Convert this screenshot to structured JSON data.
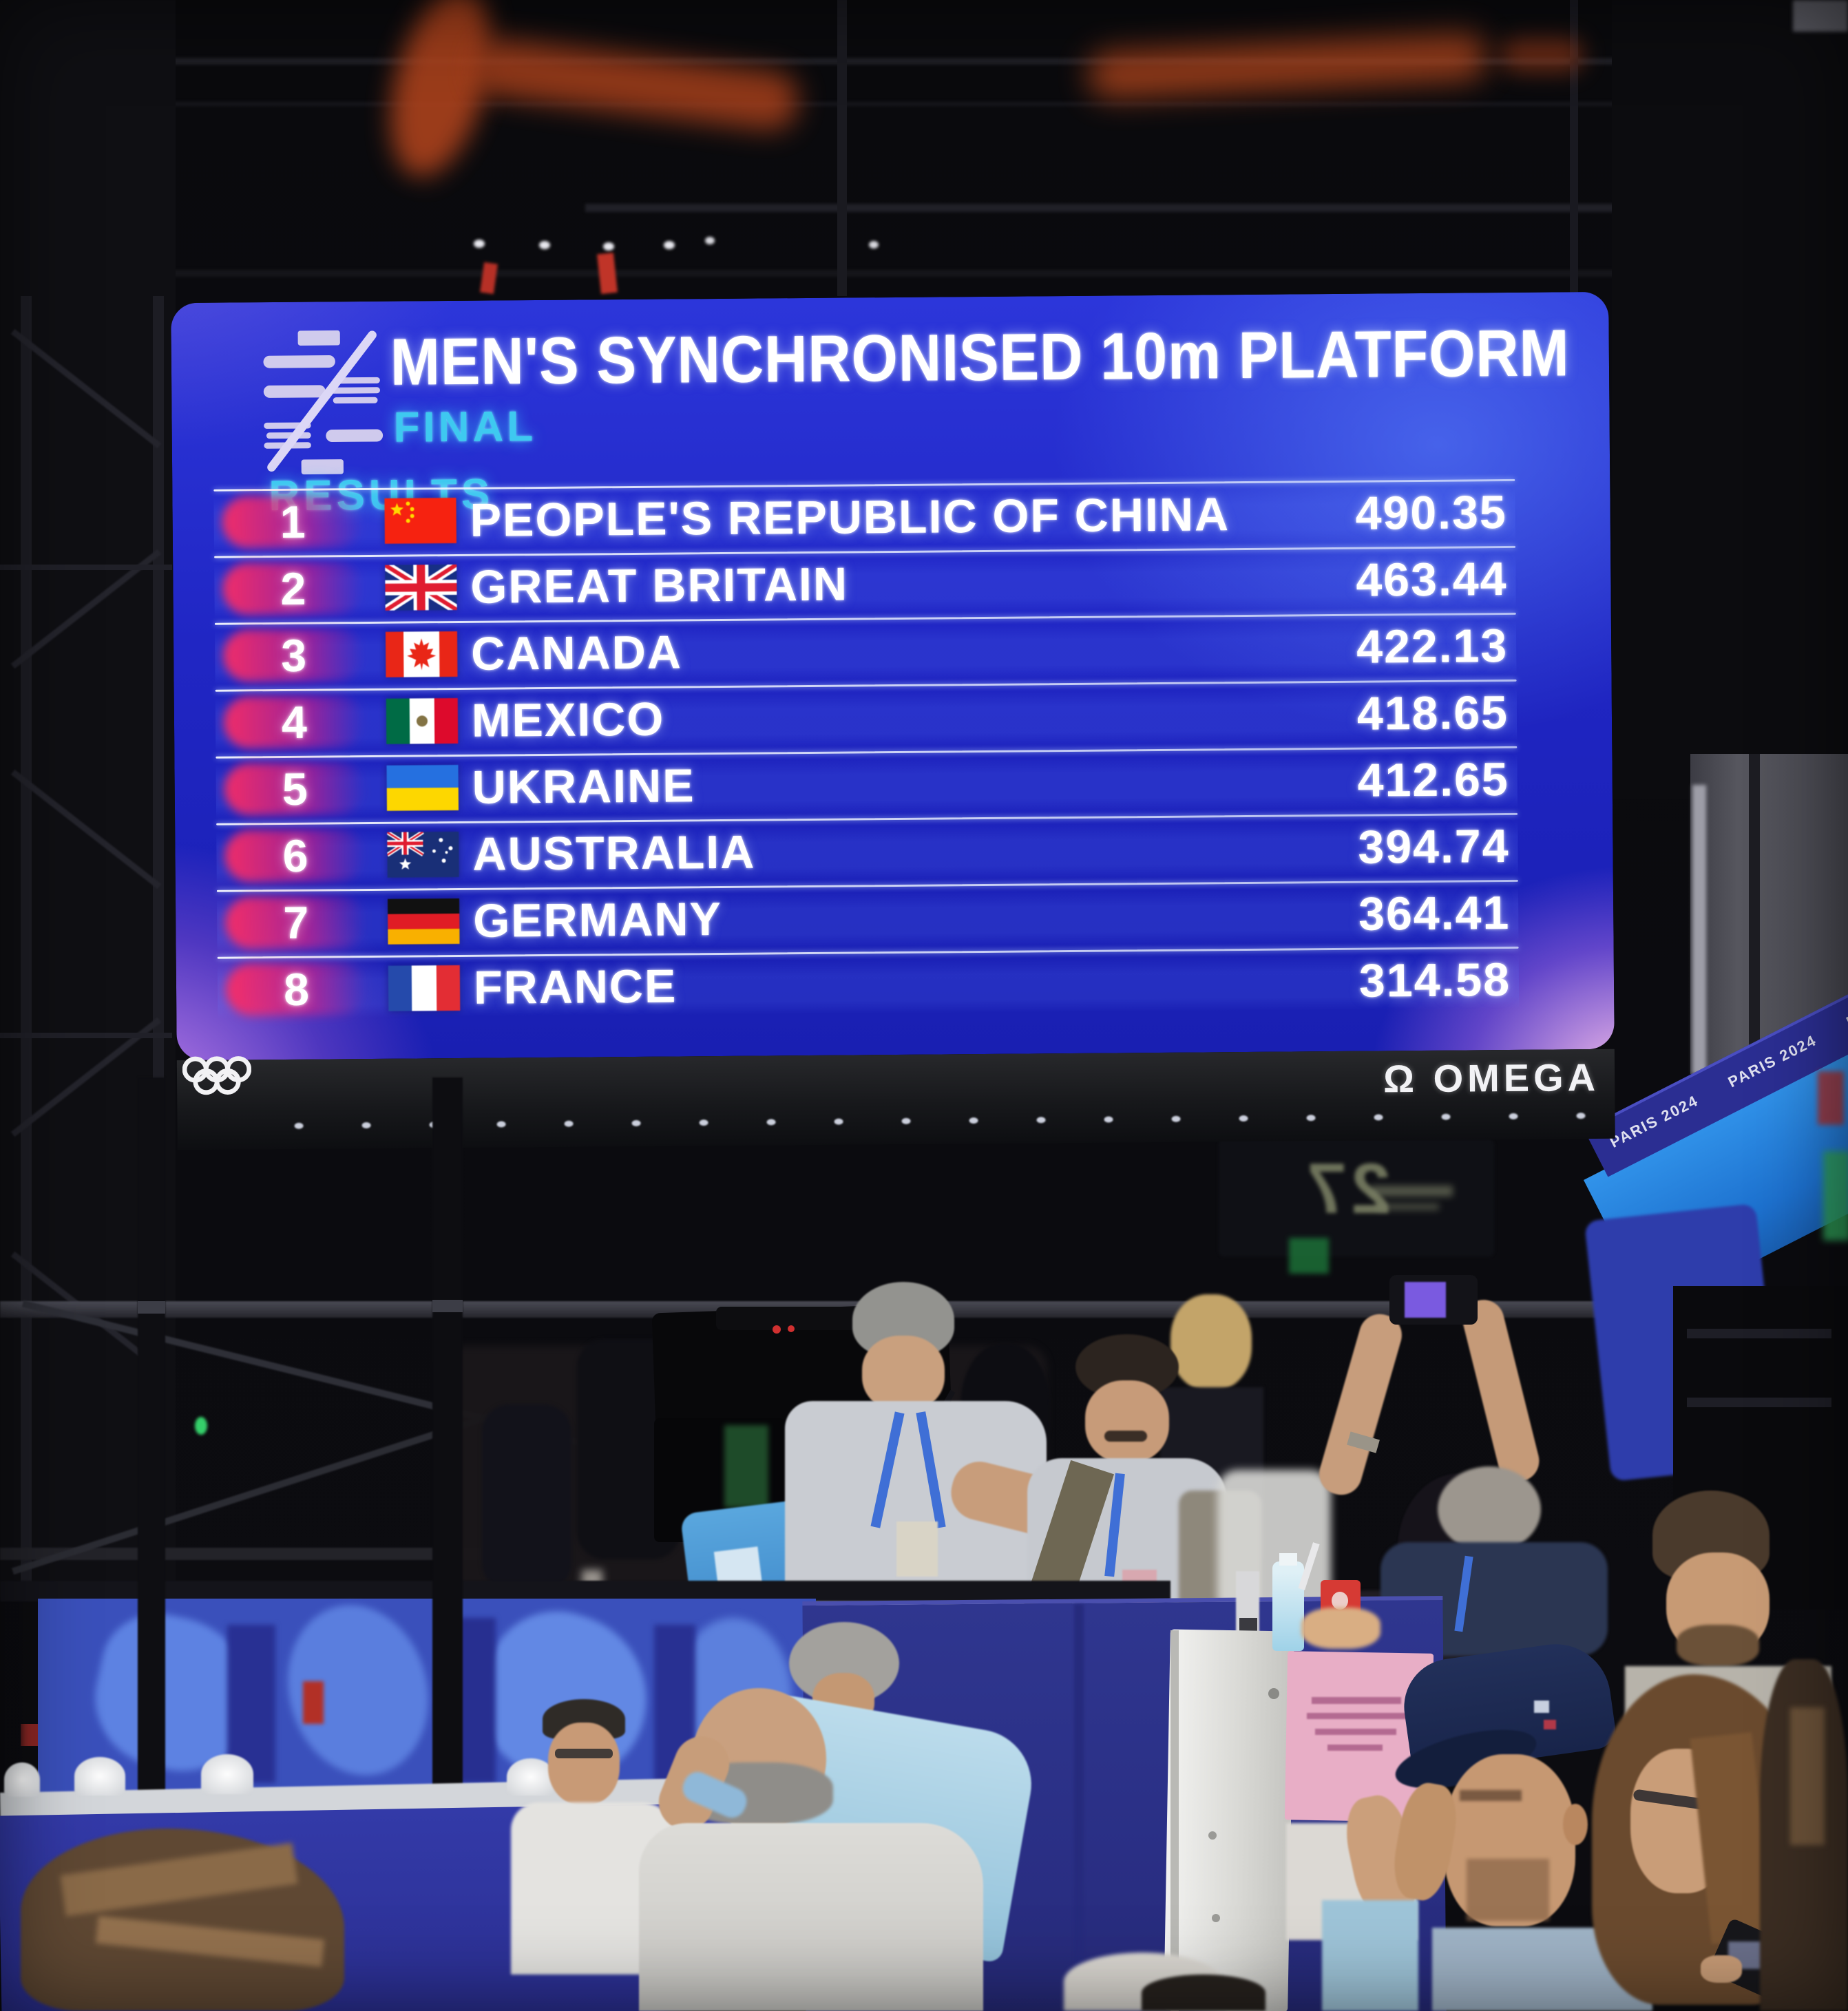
{
  "screen": {
    "competition_logo": "world-aquatics-logo",
    "title": "MEN'S SYNCHRONISED 10m PLATFORM",
    "round": "FINAL",
    "section_label": "RESULTS",
    "results": [
      {
        "rank": "1",
        "flag": "cn",
        "country": "PEOPLE'S REPUBLIC OF CHINA",
        "score": "490.35"
      },
      {
        "rank": "2",
        "flag": "gb",
        "country": "GREAT BRITAIN",
        "score": "463.44"
      },
      {
        "rank": "3",
        "flag": "ca",
        "country": "CANADA",
        "score": "422.13"
      },
      {
        "rank": "4",
        "flag": "mx",
        "country": "MEXICO",
        "score": "418.65"
      },
      {
        "rank": "5",
        "flag": "ua",
        "country": "UKRAINE",
        "score": "412.65"
      },
      {
        "rank": "6",
        "flag": "au",
        "country": "AUSTRALIA",
        "score": "394.74"
      },
      {
        "rank": "7",
        "flag": "de",
        "country": "GERMANY",
        "score": "364.41"
      },
      {
        "rank": "8",
        "flag": "fr",
        "country": "FRANCE",
        "score": "314.58"
      }
    ],
    "colors": {
      "screen_blue": "#2026c4",
      "accent_cyan": "#3ec9f0",
      "rank_glow_red": "#fc2c62",
      "text_white": "#ffffff"
    }
  },
  "screen_footer": {
    "rings_icon": "olympic-rings",
    "timing_symbol": "Ω",
    "timing_brand": "OMEGA"
  },
  "scene": {
    "gate_sign": "27",
    "banner_mark": "PARIS 2024"
  }
}
